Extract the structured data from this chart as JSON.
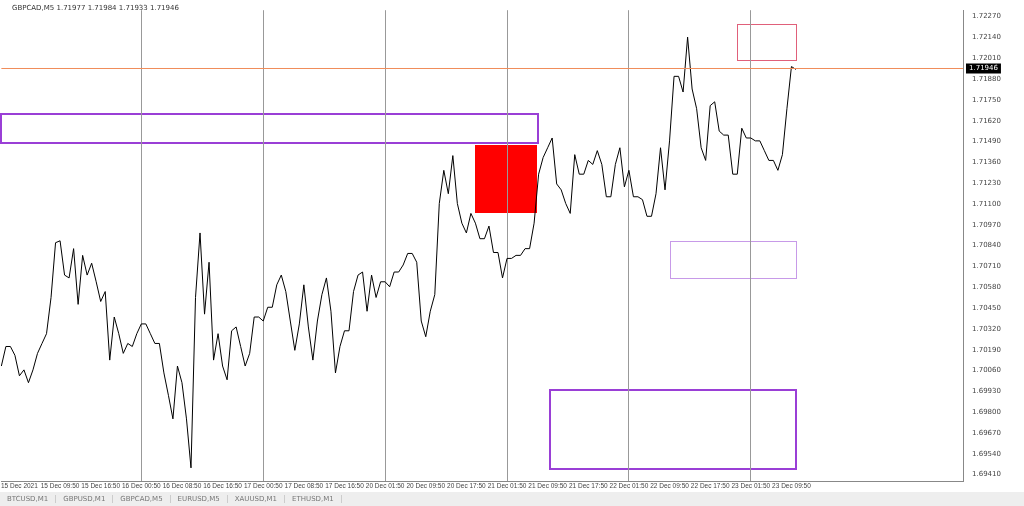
{
  "chart_data": {
    "type": "line",
    "title": "GBPCAD,M5 1.71977 1.71984 1.71933 1.71946",
    "categories": [
      null,
      null,
      null,
      null,
      "15 Dec 2021",
      null,
      null,
      null,
      null,
      null,
      null,
      null,
      null,
      "15 Dec 09:50",
      null,
      null,
      null,
      null,
      null,
      null,
      null,
      null,
      "15 Dec 16:50",
      null,
      null,
      null,
      null,
      null,
      null,
      null,
      null,
      "16 Dec 00:50",
      null,
      null,
      null,
      null,
      null,
      null,
      null,
      null,
      "16 Dec 08:50",
      null,
      null,
      null,
      null,
      null,
      null,
      null,
      null,
      "16 Dec 16:50",
      null,
      null,
      null,
      null,
      null,
      null,
      null,
      null,
      "17 Dec 00:50",
      null,
      null,
      null,
      null,
      null,
      null,
      null,
      null,
      "17 Dec 08:50",
      null,
      null,
      null,
      null,
      null,
      null,
      null,
      null,
      "17 Dec 16:50",
      null,
      null,
      null,
      null,
      null,
      null,
      null,
      null,
      "20 Dec 01:50",
      null,
      null,
      null,
      null,
      null,
      null,
      null,
      null,
      "20 Dec 09:50",
      null,
      null,
      null,
      null,
      null,
      null,
      null,
      null,
      "20 Dec 17:50",
      null,
      null,
      null,
      null,
      null,
      null,
      null,
      null,
      "21 Dec 01:50",
      null,
      null,
      null,
      null,
      null,
      null,
      null,
      null,
      "21 Dec 09:50",
      null,
      null,
      null,
      null,
      null,
      null,
      null,
      null,
      "21 Dec 17:50",
      null,
      null,
      null,
      null,
      null,
      null,
      null,
      null,
      "22 Dec 01:50",
      null,
      null,
      null,
      null,
      null,
      null,
      null,
      null,
      "22 Dec 09:50",
      null,
      null,
      null,
      null,
      null,
      null,
      null,
      null,
      "22 Dec 17:50",
      null,
      null,
      null,
      null,
      null,
      null,
      null,
      null,
      "23 Dec 01:50",
      null,
      null,
      null,
      null,
      null,
      null,
      null,
      null,
      "23 Dec 09:50",
      null,
      null,
      null,
      null,
      null,
      null,
      null,
      null,
      null,
      null,
      null,
      null,
      null,
      null,
      null,
      null,
      null,
      null,
      null,
      null,
      null,
      null,
      null,
      null,
      null,
      null,
      null,
      null,
      null,
      null,
      null,
      null,
      null,
      null,
      null,
      null,
      null,
      null
    ],
    "series": [
      {
        "color": "#000000",
        "values": [
          1.70088,
          1.7021,
          1.7021,
          1.70155,
          1.70027,
          1.70064,
          1.69984,
          1.70064,
          1.70167,
          1.70229,
          1.7029,
          1.70516,
          1.70858,
          1.7087,
          1.70656,
          1.70638,
          1.70821,
          1.70473,
          1.70779,
          1.70656,
          1.7073,
          1.70614,
          1.70491,
          1.70553,
          1.70125,
          1.70394,
          1.7029,
          1.70167,
          1.70229,
          1.7021,
          1.7029,
          1.70351,
          1.70351,
          1.7029,
          1.70229,
          1.70229,
          1.70045,
          1.69905,
          1.69758,
          1.70088,
          1.69984,
          1.69758,
          1.69452,
          1.70516,
          1.70919,
          1.70412,
          1.70736,
          1.70125,
          1.7029,
          1.70088,
          1.70002,
          1.70308,
          1.70332,
          1.7021,
          1.70088,
          1.70167,
          1.70394,
          1.70394,
          1.70369,
          1.70455,
          1.70455,
          1.70595,
          1.70656,
          1.70553,
          1.70369,
          1.70186,
          1.70351,
          1.70595,
          1.70332,
          1.70125,
          1.70369,
          1.70534,
          1.70638,
          1.7043,
          1.70045,
          1.7021,
          1.70308,
          1.70308,
          1.70553,
          1.70656,
          1.70675,
          1.7043,
          1.70656,
          1.70516,
          1.70614,
          1.70614,
          1.70583,
          1.70675,
          1.70675,
          1.70719,
          1.70791,
          1.70791,
          1.70736,
          1.70369,
          1.70271,
          1.7043,
          1.70534,
          1.71103,
          1.7131,
          1.71164,
          1.71402,
          1.71103,
          1.7098,
          1.70919,
          1.71041,
          1.7098,
          1.70883,
          1.70883,
          1.70962,
          1.70797,
          1.70797,
          1.70638,
          1.7076,
          1.7076,
          1.70779,
          1.70779,
          1.70821,
          1.70821,
          1.7098,
          1.71286,
          1.7139,
          1.71451,
          1.71512,
          1.71225,
          1.71188,
          1.71103,
          1.71041,
          1.71408,
          1.71286,
          1.71286,
          1.71372,
          1.71347,
          1.71433,
          1.71347,
          1.71145,
          1.71145,
          1.71347,
          1.71451,
          1.71207,
          1.7131,
          1.71145,
          1.71145,
          1.71127,
          1.71023,
          1.71023,
          1.71164,
          1.71451,
          1.71188,
          1.71494,
          1.71897,
          1.71897,
          1.71799,
          1.72142,
          1.71818,
          1.71695,
          1.71451,
          1.71372,
          1.71714,
          1.71738,
          1.71555,
          1.7153,
          1.7153,
          1.71286,
          1.71286,
          1.71573,
          1.71512,
          1.71512,
          1.71494,
          1.71494,
          1.71433,
          1.71372,
          1.71372,
          1.7131,
          1.71408,
          1.71695,
          1.71958,
          1.7194,
          null,
          null,
          null,
          null,
          null,
          null,
          null,
          null,
          null,
          null,
          null,
          null,
          null,
          null,
          null,
          null,
          null,
          null,
          null,
          null,
          null,
          null,
          null,
          null,
          null,
          null,
          null,
          null,
          null,
          null,
          null,
          null,
          null,
          null,
          null,
          null,
          null
        ]
      }
    ],
    "ylim": [
      1.6937,
      1.7231
    ],
    "yticks": [
      {
        "value": 1.7227,
        "label": "1.72270"
      },
      {
        "value": 1.7214,
        "label": "1.72140"
      },
      {
        "value": 1.7201,
        "label": "1.72010"
      },
      {
        "value": 1.7188,
        "label": "1.71880"
      },
      {
        "value": 1.7175,
        "label": "1.71750"
      },
      {
        "value": 1.7162,
        "label": "1.71620"
      },
      {
        "value": 1.7149,
        "label": "1.71490"
      },
      {
        "value": 1.7136,
        "label": "1.71360"
      },
      {
        "value": 1.7123,
        "label": "1.71230"
      },
      {
        "value": 1.711,
        "label": "1.71100"
      },
      {
        "value": 1.7097,
        "label": "1.70970"
      },
      {
        "value": 1.7084,
        "label": "1.70840"
      },
      {
        "value": 1.7071,
        "label": "1.70710"
      },
      {
        "value": 1.7058,
        "label": "1.70580"
      },
      {
        "value": 1.7045,
        "label": "1.70450"
      },
      {
        "value": 1.7032,
        "label": "1.70320"
      },
      {
        "value": 1.7019,
        "label": "1.70190"
      },
      {
        "value": 1.7006,
        "label": "1.70060"
      },
      {
        "value": 1.6993,
        "label": "1.69930"
      },
      {
        "value": 1.698,
        "label": "1.69800"
      },
      {
        "value": 1.6967,
        "label": "1.69670"
      },
      {
        "value": 1.6954,
        "label": "1.69540"
      },
      {
        "value": 1.6941,
        "label": "1.69410"
      }
    ],
    "grid": "x",
    "legend": false,
    "marker": "none",
    "line_style": "solid",
    "ref_lines": [
      {
        "axis": "y",
        "value": 1.71946,
        "label": "1.71946",
        "color": "#f08c5a"
      }
    ],
    "annotations": [
      "BTCUSD,M1",
      "GBPUSD,M1",
      "GBPCAD,M5",
      "EURUSD,M5",
      "XAUUSD,M1",
      "ETHUSD,M1"
    ]
  }
}
